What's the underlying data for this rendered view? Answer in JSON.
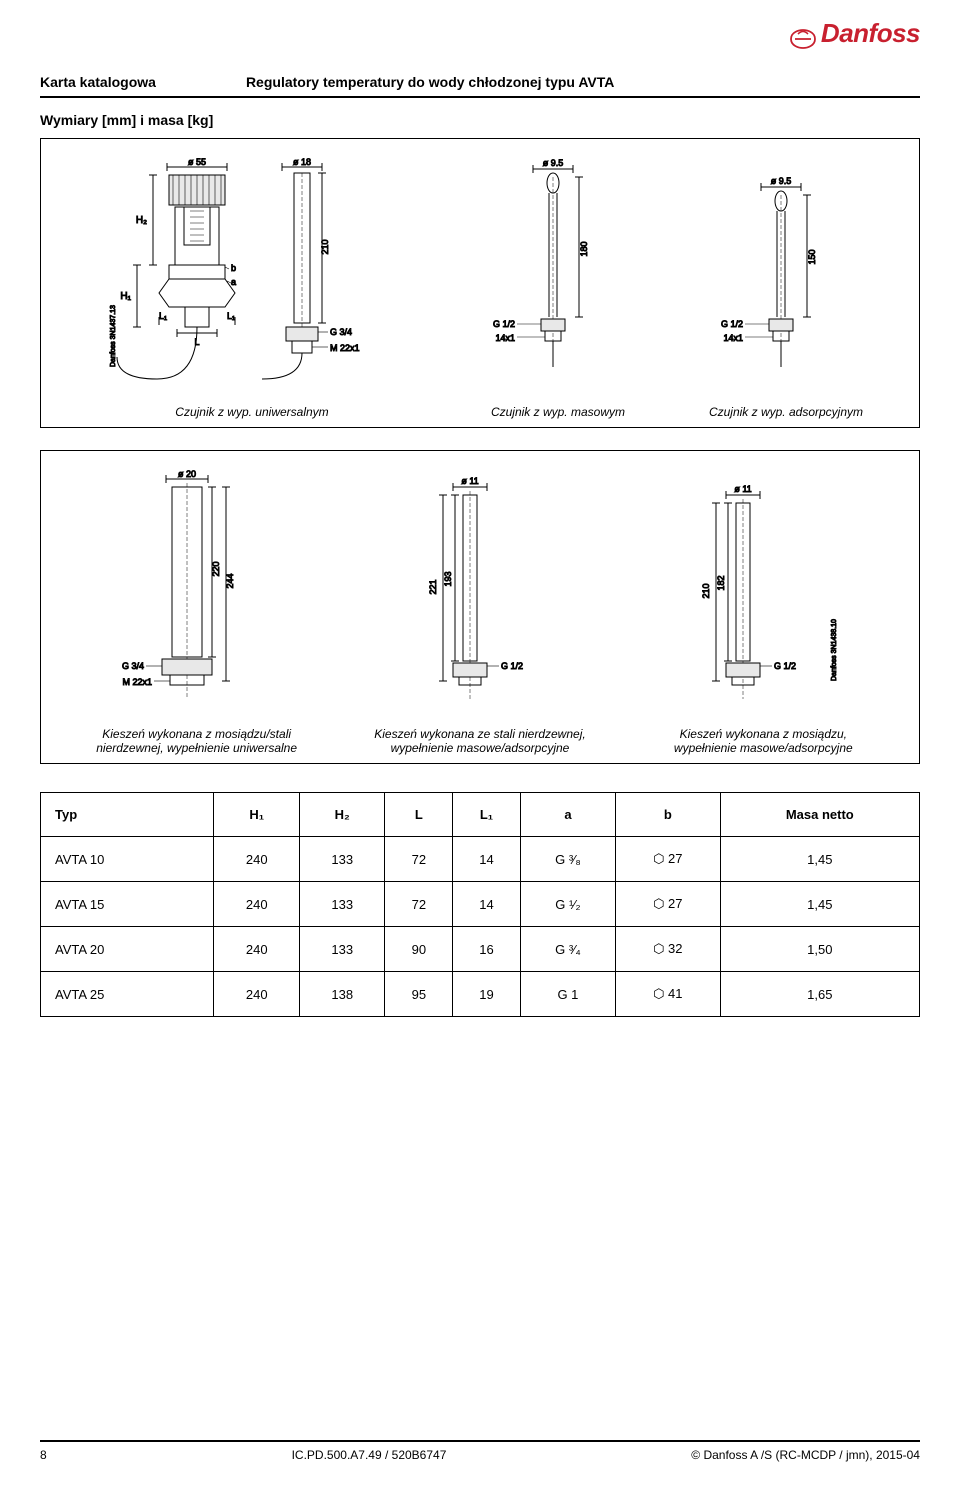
{
  "brand": "Danfoss",
  "brand_color": "#c8202f",
  "header": {
    "doc_type": "Karta katalogowa",
    "title": "Regulatory temperatury do wody chłodzonej typu AVTA"
  },
  "section1_title": "Wymiary [mm] i masa [kg]",
  "figures_top": {
    "diag1": {
      "d_top1": "ø 55",
      "d_top2": "ø 18",
      "H2": "H₂",
      "H1": "H₁",
      "a": "a",
      "b": "b",
      "L": "L",
      "L1_left": "L₁",
      "L1_right": "L₁",
      "len_210": "210",
      "G34": "G 3/4",
      "M22": "M 22x1",
      "side_code": "Danfoss 3N1437.13",
      "caption": "Czujnik z wyp. uniwersalnym"
    },
    "diag2": {
      "d": "ø 9.5",
      "len": "180",
      "G": "G 1/2",
      "M": "M 14x1",
      "caption": "Czujnik z wyp. masowym"
    },
    "diag3": {
      "d": "ø 9.5",
      "len": "150",
      "G": "G 1/2",
      "M": "M 14x1",
      "caption": "Czujnik z wyp. adsorpcyjnym"
    }
  },
  "figures_bottom": {
    "b1": {
      "d": "ø 20",
      "len1": "220",
      "len2": "244",
      "G": "G 3/4",
      "M": "M 22x1",
      "caption": "Kieszeń wykonana z mosiądzu/stali nierdzewnej, wypełnienie uniwersalne"
    },
    "b2": {
      "d": "ø 11",
      "len1": "221",
      "len2": "193",
      "G": "G 1/2",
      "caption": "Kieszeń wykonana ze stali nierdzewnej, wypełnienie masowe/adsorpcyjne"
    },
    "b3": {
      "d": "ø 11",
      "len1": "210",
      "len2": "182",
      "G": "G 1/2",
      "side_code": "Danfoss 3N1438.10",
      "caption": "Kieszeń wykonana z mosiądzu, wypełnienie masowe/adsorpcyjne"
    }
  },
  "table": {
    "headers": [
      "Typ",
      "H₁",
      "H₂",
      "L",
      "L₁",
      "a",
      "b",
      "Masa netto"
    ],
    "rows": [
      [
        "AVTA 10",
        "240",
        "133",
        "72",
        "14",
        "G ³⁄₈",
        "⬡ 27",
        "1,45"
      ],
      [
        "AVTA 15",
        "240",
        "133",
        "72",
        "14",
        "G ¹⁄₂",
        "⬡ 27",
        "1,45"
      ],
      [
        "AVTA 20",
        "240",
        "133",
        "90",
        "16",
        "G ³⁄₄",
        "⬡ 32",
        "1,50"
      ],
      [
        "AVTA 25",
        "240",
        "138",
        "95",
        "19",
        "G 1",
        "⬡ 41",
        "1,65"
      ]
    ]
  },
  "footer": {
    "page": "8",
    "mid": "IC.PD.500.A7.49 / 520B6747",
    "right": "© Danfoss A /S (RC-MCDP / jmn), 2015-04"
  },
  "colors": {
    "line": "#000000",
    "shade": "#e8e8e8",
    "fill": "#ffffff"
  }
}
